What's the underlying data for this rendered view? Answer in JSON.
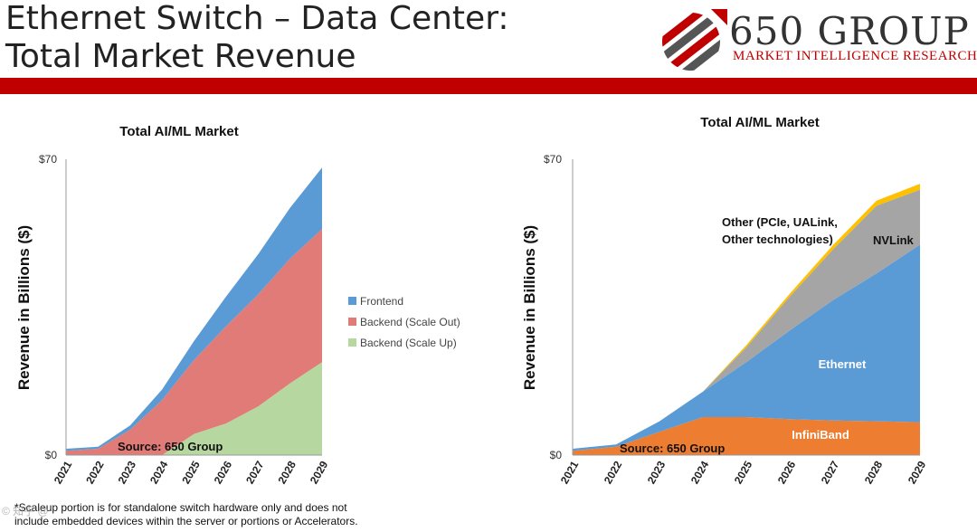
{
  "header": {
    "title_line1": "Ethernet Switch – Data Center:",
    "title_line2": "Total Market Revenue",
    "logo_name": "650 GROUP",
    "logo_tagline": "MARKET INTELLIGENCE RESEARCH",
    "accent_color": "#c00000"
  },
  "footnote": {
    "line1": "*Scaleup portion is for standalone switch hardware only and does not",
    "line2": "include embedded devices within the server or portions or Accelerators."
  },
  "watermark": "© 知乎 @",
  "chart_data": [
    {
      "type": "area",
      "stacked": true,
      "title": "Total AI/ML Market",
      "ylabel": "Revenue in Billions ($)",
      "xlabel": "",
      "ylim": [
        0,
        70
      ],
      "y_ticks": [
        "$0",
        "$70"
      ],
      "categories": [
        "2021",
        "2022",
        "2023",
        "2024",
        "2025",
        "2026",
        "2027",
        "2028",
        "2029"
      ],
      "series": [
        {
          "name": "Backend (Scale Up)",
          "color": "#b6d7a0",
          "values": [
            0,
            0,
            0,
            0,
            5,
            7.5,
            11.5,
            17,
            22
          ]
        },
        {
          "name": "Backend (Scale Out)",
          "color": "#e07b78",
          "values": [
            1,
            1.5,
            6,
            13,
            17.5,
            23,
            26.5,
            29.5,
            31.5
          ]
        },
        {
          "name": "Frontend",
          "color": "#5b9bd5",
          "values": [
            0.5,
            0.5,
            1,
            2.5,
            4.5,
            7,
            9.5,
            12,
            14.5
          ]
        }
      ],
      "legend": "right",
      "annotation": "Source: 650 Group"
    },
    {
      "type": "area",
      "stacked": true,
      "title": "Total AI/ML Market",
      "ylabel": "Revenue  in Billions ($)",
      "xlabel": "",
      "ylim": [
        0,
        70
      ],
      "y_ticks": [
        "$0",
        "$70"
      ],
      "categories": [
        "2021",
        "2022",
        "2023",
        "2024",
        "2025",
        "2026",
        "2027",
        "2028",
        "2029"
      ],
      "series": [
        {
          "name": "InfiniBand",
          "color": "#ed7d31",
          "values": [
            1,
            2,
            5.5,
            9,
            9,
            8.5,
            8.2,
            8,
            7.8
          ]
        },
        {
          "name": "Ethernet",
          "color": "#5b9bd5",
          "values": [
            0.5,
            0.5,
            2.5,
            6,
            13,
            21,
            28.5,
            35,
            42
          ]
        },
        {
          "name": "NVLink",
          "color": "#a5a5a5",
          "values": [
            0,
            0,
            0,
            0,
            3.5,
            8,
            12,
            16,
            13
          ]
        },
        {
          "name": "Other (PCIe, UALink, Other technologies)",
          "color": "#ffc000",
          "values": [
            0,
            0,
            0,
            0,
            0.5,
            0.7,
            1,
            1.2,
            1.4
          ]
        }
      ],
      "labels": {
        "other_line1": "Other (PCIe, UALink,",
        "other_line2": "Other technologies)",
        "nvlink": "NVLink",
        "ethernet": "Ethernet",
        "infiniband": "InfiniBand"
      },
      "annotation": "Source: 650 Group"
    }
  ]
}
